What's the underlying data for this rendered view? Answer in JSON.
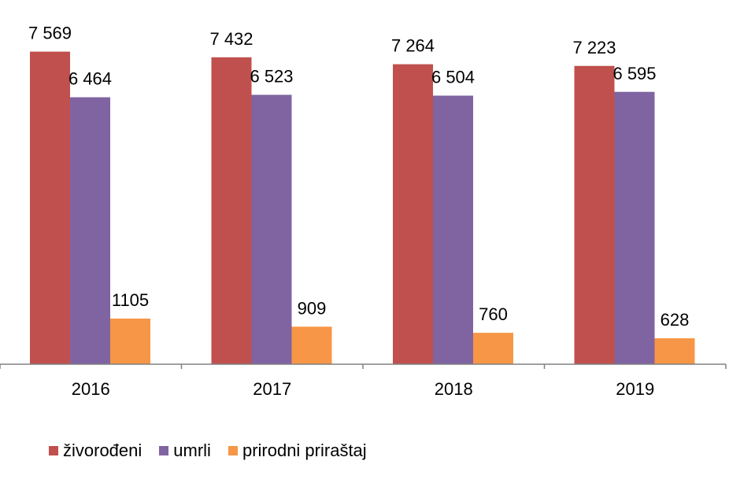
{
  "chart_data": {
    "type": "bar",
    "categories": [
      "2016",
      "2017",
      "2018",
      "2019"
    ],
    "series": [
      {
        "name": "živorođeni",
        "color": "#C0504D",
        "values": [
          7569,
          7432,
          7264,
          7223
        ],
        "labels": [
          "7 569",
          "7 432",
          "7 264",
          "7 223"
        ]
      },
      {
        "name": "umrli",
        "color": "#8064A2",
        "values": [
          6464,
          6523,
          6504,
          6595
        ],
        "labels": [
          "6 464",
          "6 523",
          "6 504",
          "6 595"
        ]
      },
      {
        "name": "prirodni priraštaj",
        "color": "#F79646",
        "values": [
          1105,
          909,
          760,
          628
        ],
        "labels": [
          "1105",
          "909",
          "760",
          "628"
        ]
      }
    ],
    "ylim": [
      0,
      8000
    ],
    "grid": false,
    "legend_position": "bottom-left"
  }
}
